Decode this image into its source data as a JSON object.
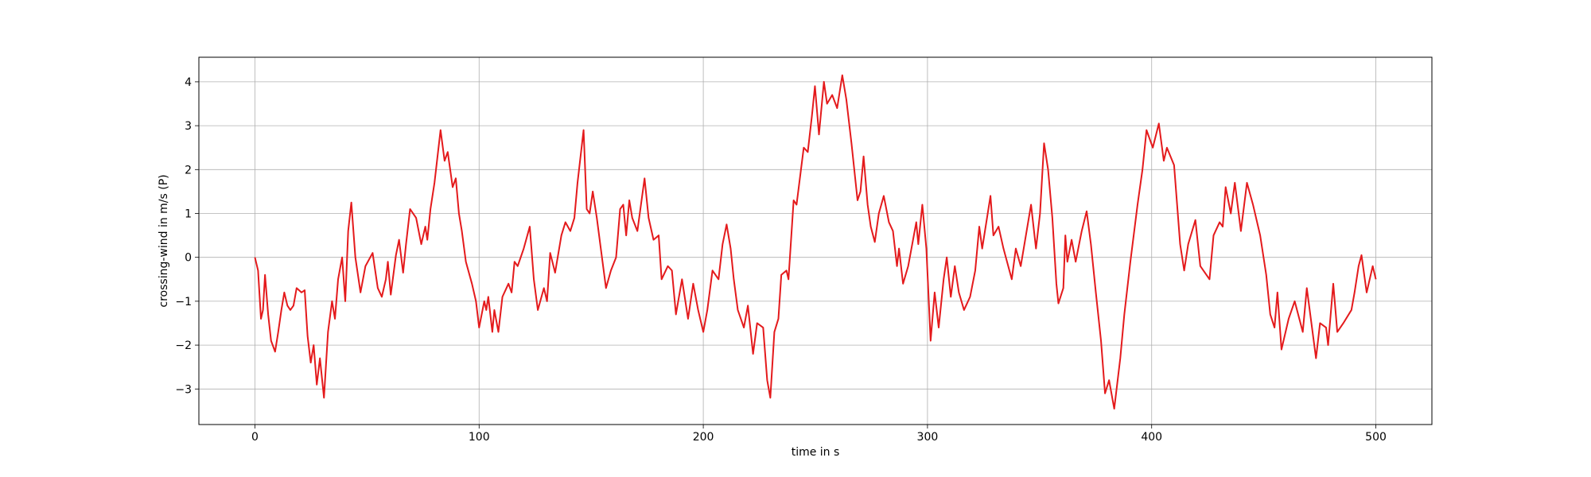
{
  "chart_data": {
    "type": "line",
    "xlabel": "time in s",
    "ylabel": "crossing-wind in m/s (P)",
    "xlim": [
      -25,
      525
    ],
    "ylim": [
      -3.81,
      4.56
    ],
    "xticks": [
      0,
      100,
      200,
      300,
      400,
      500
    ],
    "yticks": [
      {
        "value": -3,
        "label": "−3"
      },
      {
        "value": -2,
        "label": "−2"
      },
      {
        "value": -1,
        "label": "−1"
      },
      0,
      1,
      2,
      3,
      4
    ],
    "grid": true,
    "x": [
      0,
      1.4,
      2.7,
      3.6,
      4.5,
      5.9,
      7.2,
      9,
      10.4,
      11.8,
      13.1,
      14.5,
      15.8,
      17.2,
      18.6,
      20.8,
      22.2,
      23.5,
      24.9,
      26.2,
      27.6,
      29,
      30.8,
      32.6,
      34.4,
      35.7,
      37.1,
      38.9,
      40.3,
      41.6,
      43,
      44.8,
      47.1,
      49.3,
      52.5,
      54.8,
      56.6,
      58.4,
      59.3,
      60.6,
      62.9,
      64.3,
      66.1,
      67.4,
      69.2,
      71.9,
      74.2,
      76,
      76.9,
      78.3,
      80.1,
      82.8,
      84.6,
      86,
      88.2,
      89.6,
      91,
      92.3,
      94.1,
      96.8,
      98.6,
      100,
      102.3,
      103.2,
      104.1,
      105.9,
      106.8,
      108.6,
      110.4,
      113.1,
      114.5,
      115.8,
      117.2,
      119.9,
      122.6,
      124.4,
      126.2,
      128.9,
      130.3,
      131.7,
      133.9,
      136.7,
      138.5,
      140.7,
      142.5,
      143.9,
      146.6,
      148,
      149.3,
      150.7,
      152.5,
      154.8,
      156.6,
      158.8,
      161.1,
      162.9,
      164.3,
      165.6,
      167,
      168.3,
      170.6,
      173.8,
      175.6,
      177.8,
      180.1,
      181.4,
      184.2,
      186,
      187.8,
      190.5,
      193.2,
      195.5,
      197.7,
      200,
      201.8,
      204.1,
      206.8,
      208.6,
      210.4,
      212.2,
      213.6,
      215.4,
      218.1,
      219.9,
      222.2,
      224,
      226.7,
      228.5,
      229.9,
      231.7,
      233.5,
      234.8,
      237.1,
      238,
      240.3,
      241.6,
      244.8,
      246.6,
      248.4,
      249.8,
      251.6,
      253.8,
      255.2,
      257.5,
      259.7,
      262,
      263.8,
      266.1,
      268.8,
      270.1,
      271.5,
      273.3,
      274.7,
      276.5,
      278.3,
      280.5,
      282.8,
      284.6,
      286.4,
      287.3,
      289.1,
      291.4,
      295,
      295.9,
      297.7,
      299.5,
      301.4,
      303.2,
      305,
      307.2,
      308.6,
      310.4,
      312.2,
      314,
      316.3,
      319,
      321.3,
      323.1,
      324.4,
      328.1,
      329.4,
      331.7,
      333.9,
      337.6,
      339.4,
      341.6,
      346.2,
      348.4,
      350.2,
      352,
      353.8,
      355.7,
      357.5,
      358.4,
      360.6,
      361.5,
      362.4,
      364.3,
      366.1,
      368.8,
      371,
      372.9,
      375.1,
      377.4,
      379.2,
      381,
      383.3,
      386,
      387.8,
      390.5,
      393.7,
      395.9,
      397.7,
      400.5,
      403.2,
      405.4,
      406.8,
      410,
      412.7,
      414.5,
      416.3,
      419.5,
      421.7,
      425.8,
      427.6,
      430.3,
      431.7,
      433,
      435.3,
      437.1,
      439.8,
      442.5,
      445.2,
      448.4,
      451.1,
      452.9,
      454.8,
      456.1,
      457.9,
      461.1,
      463.8,
      467.4,
      469.2,
      471,
      473.3,
      475.1,
      477.8,
      478.7,
      481,
      482.8,
      485.5,
      489.1,
      490.5,
      492.3,
      493.6,
      495.9,
      498.6,
      500
    ],
    "series": [
      {
        "name": "crossing-wind",
        "color": "#e41a1c",
        "values": [
          0,
          -0.3,
          -1.4,
          -1.2,
          -0.4,
          -1.3,
          -1.9,
          -2.15,
          -1.7,
          -1.2,
          -0.8,
          -1.1,
          -1.2,
          -1.1,
          -0.7,
          -0.8,
          -0.75,
          -1.8,
          -2.4,
          -2.0,
          -2.9,
          -2.3,
          -3.2,
          -1.7,
          -1.0,
          -1.4,
          -0.5,
          0,
          -1.0,
          0.6,
          1.25,
          0,
          -0.8,
          -0.2,
          0.1,
          -0.7,
          -0.9,
          -0.5,
          -0.1,
          -0.85,
          0.05,
          0.4,
          -0.35,
          0.3,
          1.1,
          0.9,
          0.3,
          0.7,
          0.4,
          1.1,
          1.7,
          2.9,
          2.2,
          2.4,
          1.6,
          1.8,
          1.0,
          0.6,
          -0.1,
          -0.6,
          -1.0,
          -1.6,
          -1.0,
          -1.2,
          -0.9,
          -1.7,
          -1.2,
          -1.7,
          -0.9,
          -0.6,
          -0.8,
          -0.1,
          -0.2,
          0.2,
          0.7,
          -0.5,
          -1.2,
          -0.7,
          -1.0,
          0.1,
          -0.35,
          0.5,
          0.8,
          0.6,
          0.9,
          1.7,
          2.9,
          1.1,
          1.0,
          1.5,
          0.9,
          0,
          -0.7,
          -0.3,
          0,
          1.1,
          1.2,
          0.5,
          1.3,
          0.9,
          0.6,
          1.8,
          0.9,
          0.4,
          0.5,
          -0.5,
          -0.2,
          -0.3,
          -1.3,
          -0.5,
          -1.4,
          -0.6,
          -1.2,
          -1.7,
          -1.2,
          -0.3,
          -0.5,
          0.3,
          0.75,
          0.2,
          -0.5,
          -1.2,
          -1.6,
          -1.1,
          -2.2,
          -1.5,
          -1.6,
          -2.8,
          -3.2,
          -1.7,
          -1.4,
          -0.4,
          -0.3,
          -0.5,
          1.3,
          1.2,
          2.5,
          2.4,
          3.2,
          3.9,
          2.8,
          4.0,
          3.5,
          3.7,
          3.4,
          4.15,
          3.6,
          2.6,
          1.3,
          1.5,
          2.3,
          1.2,
          0.7,
          0.35,
          1.0,
          1.4,
          0.8,
          0.6,
          -0.2,
          0.2,
          -0.6,
          -0.2,
          0.8,
          0.3,
          1.2,
          0.2,
          -1.9,
          -0.8,
          -1.6,
          -0.5,
          0,
          -0.9,
          -0.2,
          -0.8,
          -1.2,
          -0.9,
          -0.3,
          0.7,
          0.2,
          1.4,
          0.5,
          0.7,
          0.2,
          -0.5,
          0.2,
          -0.2,
          1.2,
          0.2,
          1.0,
          2.6,
          2.0,
          0.9,
          -0.6,
          -1.05,
          -0.7,
          0.5,
          -0.1,
          0.4,
          -0.1,
          0.6,
          1.05,
          0.3,
          -0.8,
          -1.9,
          -3.1,
          -2.8,
          -3.45,
          -2.3,
          -1.3,
          -0.1,
          1.2,
          2.0,
          2.9,
          2.5,
          3.05,
          2.2,
          2.5,
          2.1,
          0.3,
          -0.3,
          0.3,
          0.85,
          -0.2,
          -0.5,
          0.5,
          0.8,
          0.7,
          1.6,
          1.0,
          1.7,
          0.6,
          1.7,
          1.2,
          0.5,
          -0.4,
          -1.3,
          -1.6,
          -0.8,
          -2.1,
          -1.4,
          -1.0,
          -1.7,
          -0.7,
          -1.4,
          -2.3,
          -1.5,
          -1.6,
          -2.0,
          -0.6,
          -1.7,
          -1.5,
          -1.2,
          -0.8,
          -0.2,
          0.05,
          -0.8,
          -0.2,
          -0.5
        ]
      }
    ]
  }
}
